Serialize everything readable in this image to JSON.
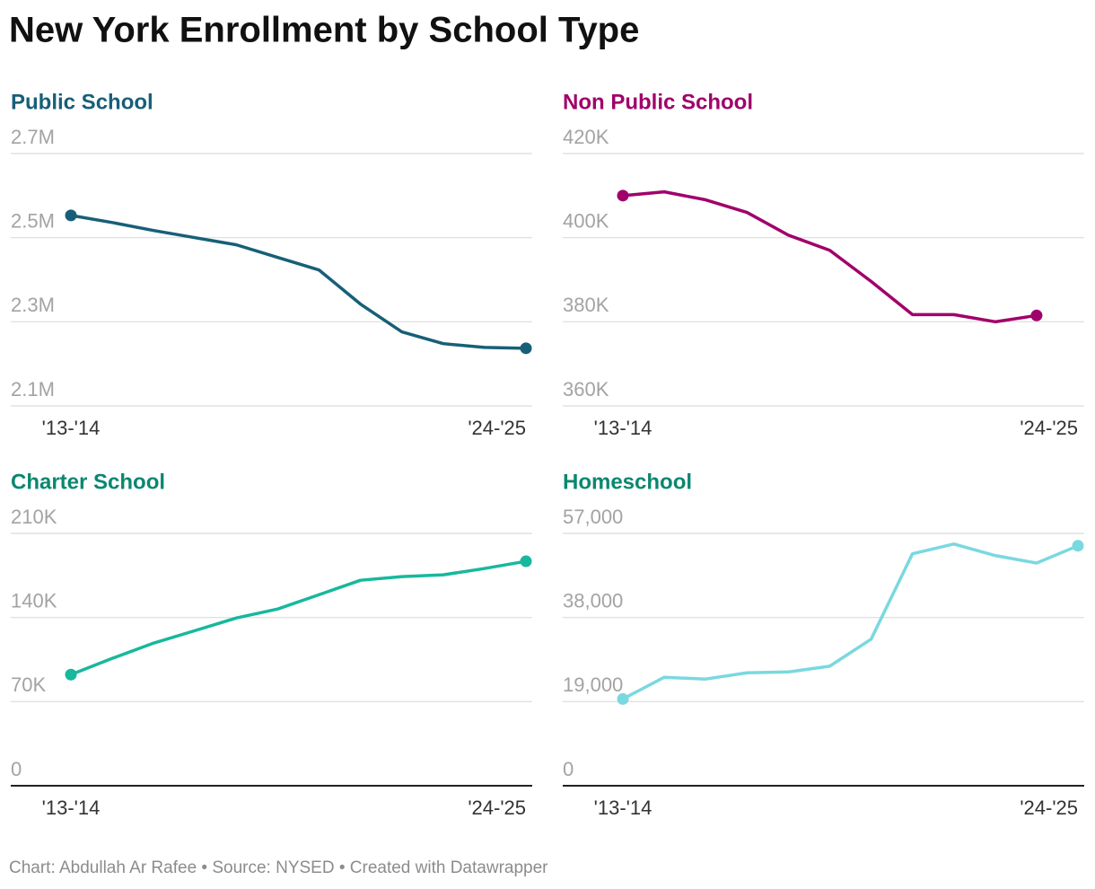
{
  "title": "New York Enrollment by School Type",
  "footer": "Chart: Abdullah Ar Rafee • Source: NYSED • Created with Datawrapper",
  "chart_data": [
    {
      "type": "line",
      "title": "Public School",
      "title_color": "#175f78",
      "categories": [
        "'13-'14",
        null,
        null,
        null,
        null,
        null,
        null,
        null,
        null,
        null,
        null,
        "'24-'25"
      ],
      "series": [
        {
          "name": "Public School",
          "color": "#175f78",
          "values": [
            2553000,
            2536000,
            2517000,
            2500000,
            2483000,
            2453000,
            2423000,
            2342000,
            2276000,
            2248000,
            2239000,
            2237000
          ]
        }
      ],
      "ylim": [
        2100000,
        2700000
      ],
      "yticks": [
        {
          "value": 2100000,
          "label": "2.1M"
        },
        {
          "value": 2300000,
          "label": "2.3M"
        },
        {
          "value": 2500000,
          "label": "2.5M"
        },
        {
          "value": 2700000,
          "label": "2.7M"
        }
      ],
      "grid": true
    },
    {
      "type": "line",
      "title": "Non Public School",
      "title_color": "#a0006b",
      "categories": [
        "'13-'14",
        null,
        null,
        null,
        null,
        null,
        null,
        null,
        null,
        null,
        null,
        "'24-'25"
      ],
      "series": [
        {
          "name": "Non Public School",
          "color": "#a0006b",
          "values": [
            410000,
            410900,
            409000,
            406000,
            400600,
            397000,
            389600,
            381700,
            381700,
            380000,
            381500,
            null
          ]
        }
      ],
      "ylim": [
        360000,
        420000
      ],
      "yticks": [
        {
          "value": 360000,
          "label": "360K"
        },
        {
          "value": 380000,
          "label": "380K"
        },
        {
          "value": 400000,
          "label": "400K"
        },
        {
          "value": 420000,
          "label": "420K"
        }
      ],
      "grid": true
    },
    {
      "type": "line",
      "title": "Charter School",
      "title_color": "#0b8770",
      "categories": [
        "'13-'14",
        null,
        null,
        null,
        null,
        null,
        null,
        null,
        null,
        null,
        null,
        "'24-'25"
      ],
      "series": [
        {
          "name": "Charter School",
          "color": "#17b89d",
          "values": [
            92500,
            106000,
            118700,
            129100,
            139600,
            147100,
            159000,
            171000,
            174000,
            175500,
            180800,
            186800
          ]
        }
      ],
      "ylim": [
        0,
        210000
      ],
      "yticks": [
        0,
        {
          "value": 70000,
          "label": "70K"
        },
        {
          "value": 140000,
          "label": "140K"
        },
        {
          "value": 210000,
          "label": "210K"
        }
      ],
      "grid": true
    },
    {
      "type": "line",
      "title": "Homeschool",
      "title_color": "#0b8770",
      "categories": [
        "'13-'14",
        null,
        null,
        null,
        null,
        null,
        null,
        null,
        null,
        null,
        null,
        "'24-'25"
      ],
      "series": [
        {
          "name": "Homeschool",
          "color": "#7ad8e0",
          "values": [
            19600,
            24500,
            24100,
            25500,
            25700,
            27000,
            33100,
            52400,
            54600,
            52000,
            50300,
            54200
          ]
        }
      ],
      "ylim": [
        0,
        57000
      ],
      "yticks": [
        0,
        {
          "value": 19000,
          "label": "19,000"
        },
        {
          "value": 38000,
          "label": "38,000"
        },
        {
          "value": 57000,
          "label": "57,000"
        }
      ],
      "grid": true
    }
  ]
}
